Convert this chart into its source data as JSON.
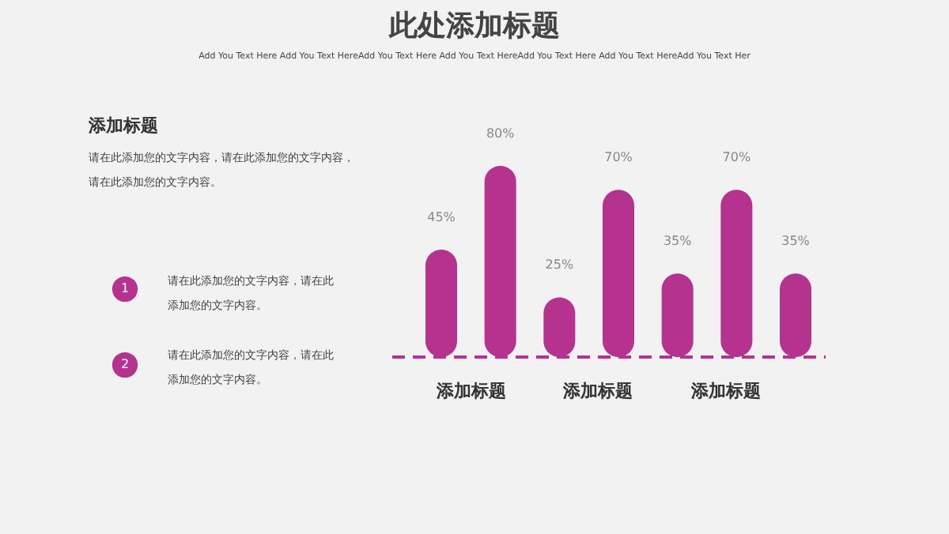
{
  "chart_data": {
    "type": "bar",
    "title": "此处添加标题",
    "categories": [
      null,
      null,
      null,
      null,
      null,
      null,
      null
    ],
    "values": [
      45,
      80,
      25,
      70,
      35,
      70,
      35
    ],
    "value_labels": [
      "45%",
      "80%",
      "25%",
      "70%",
      "35%",
      "70%",
      "35%"
    ],
    "color": "#b5338e",
    "ref_lines": [
      {
        "axis": "y",
        "value": 0,
        "color": "#b5338e",
        "line_style": "dashed"
      }
    ],
    "annotations": [
      "Add You Text Here Add You Text HereAdd You Text Here Add You Text HereAdd You Text Here Add You Text HereAdd You Text Her",
      "添加标题",
      "请在此添加您的文字内容，请在此添加您的文字内容，请在此添加您的文字内容。",
      "1",
      "请在此添加您的文字内容，请在此添加您的文字内容。",
      "2",
      "请在此添加您的文字内容，请在此添加您的文字内容。",
      "添加标题",
      "添加标题",
      "添加标题"
    ],
    "grid": false
  }
}
